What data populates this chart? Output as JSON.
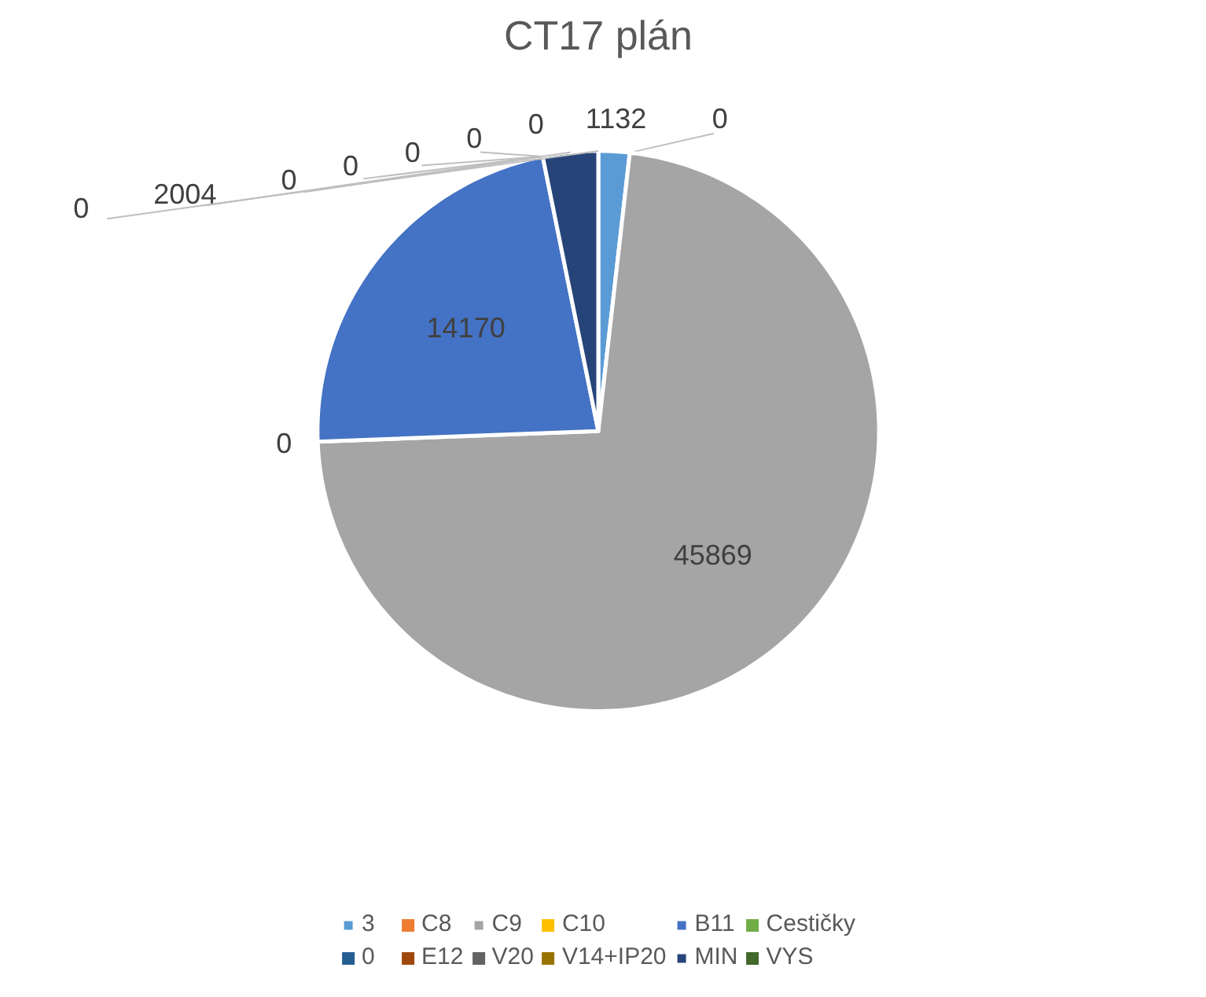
{
  "chart_data": {
    "type": "pie",
    "title": "CT17 plán",
    "categories": [
      "3",
      "C8",
      "C9",
      "C10",
      "B11",
      "Cestičky",
      "0",
      "E12",
      "V20",
      "V14+IP20",
      "MIN",
      "VYS"
    ],
    "values": [
      1132,
      0,
      45869,
      0,
      14170,
      0,
      0,
      0,
      0,
      0,
      2004,
      0
    ],
    "colors": [
      "#5b9bd5",
      "#ed7d31",
      "#a5a5a5",
      "#ffc000",
      "#4472c4",
      "#70ad47",
      "#255e91",
      "#9e480e",
      "#636363",
      "#997300",
      "#264478",
      "#43682b"
    ],
    "data_labels": true,
    "legend": "bottom"
  }
}
